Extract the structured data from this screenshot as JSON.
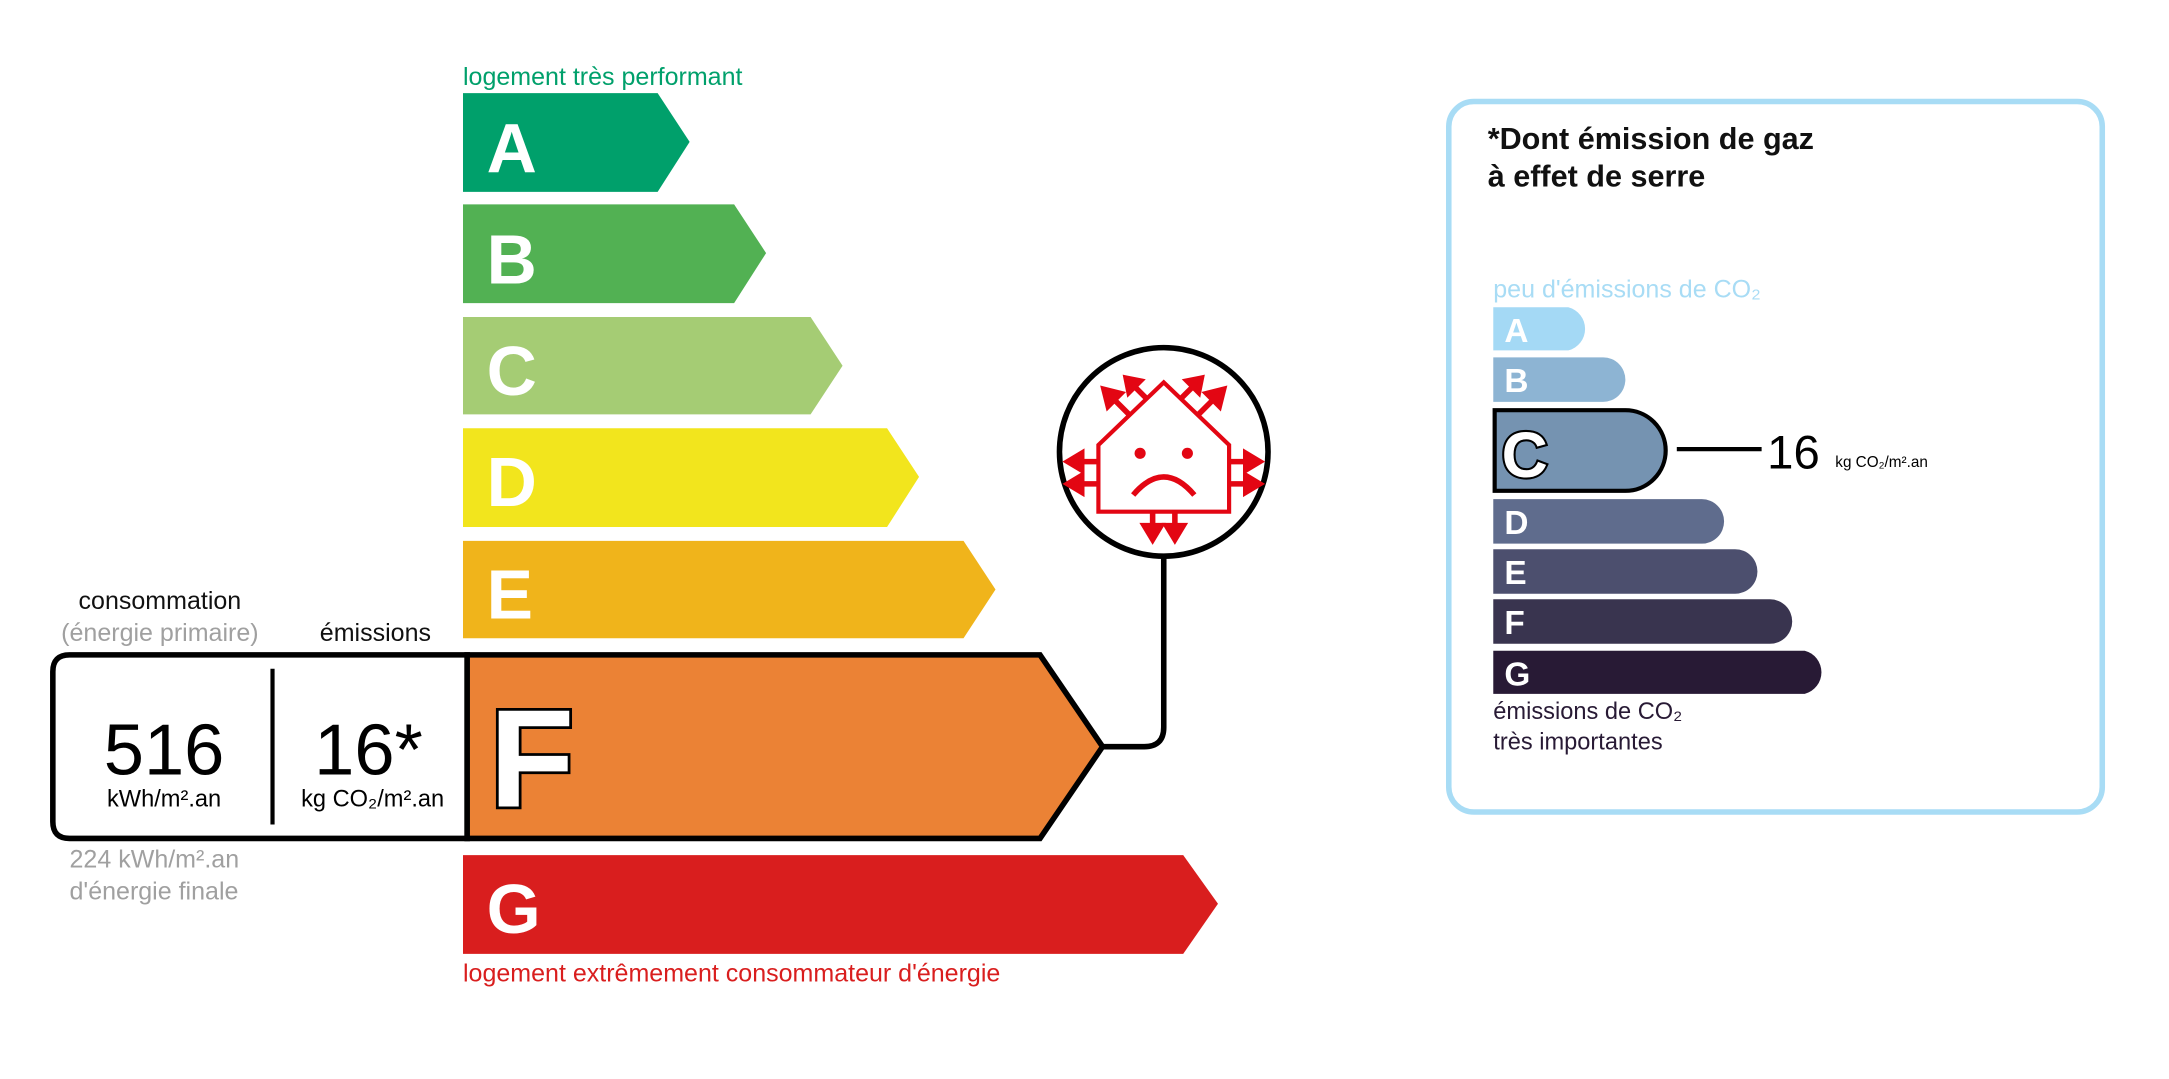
{
  "energy": {
    "top_label": "logement très performant",
    "bottom_label": "logement extrêmement consommateur d'énergie",
    "classes": [
      {
        "letter": "A",
        "color": "#00a06b"
      },
      {
        "letter": "B",
        "color": "#52b153"
      },
      {
        "letter": "C",
        "color": "#a5cc74"
      },
      {
        "letter": "D",
        "color": "#f2e51d"
      },
      {
        "letter": "E",
        "color": "#f0b41b"
      },
      {
        "letter": "F",
        "color": "#eb8235"
      },
      {
        "letter": "G",
        "color": "#d91e1e"
      }
    ],
    "current_class": "F",
    "consumption_heading": "consommation",
    "consumption_subheading": "(énergie primaire)",
    "emissions_heading": "émissions",
    "consumption_value": "516",
    "consumption_unit": "kWh/m².an",
    "emissions_value": "16*",
    "emissions_unit": "kg CO₂/m².an",
    "final_energy_value": "224 kWh/m².an",
    "final_energy_label": "d'énergie finale",
    "icon": "sad-house-heat-loss-icon"
  },
  "ges": {
    "title_line1": "*Dont émission de gaz",
    "title_line2": "à effet de serre",
    "top_label": "peu d'émissions de CO₂",
    "bottom_label_line1": "émissions de CO₂",
    "bottom_label_line2": "très importantes",
    "classes": [
      {
        "letter": "A",
        "color": "#a4d9f5"
      },
      {
        "letter": "B",
        "color": "#8db4d3"
      },
      {
        "letter": "C",
        "color": "#7593b1"
      },
      {
        "letter": "D",
        "color": "#5f6c8d"
      },
      {
        "letter": "E",
        "color": "#4c4f6e"
      },
      {
        "letter": "F",
        "color": "#39344f"
      },
      {
        "letter": "G",
        "color": "#281a35"
      }
    ],
    "current_class": "C",
    "value": "16",
    "unit": "kg CO₂/m².an",
    "border_color": "#a8dcf5"
  }
}
